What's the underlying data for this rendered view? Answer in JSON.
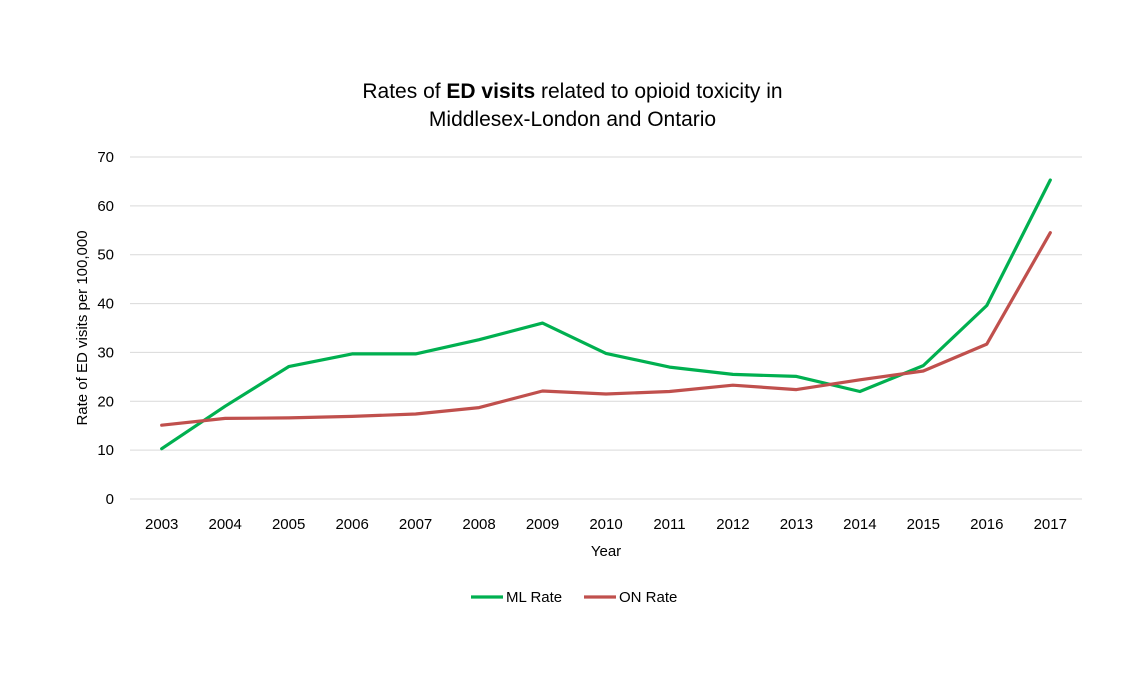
{
  "chart_data": {
    "type": "line",
    "title_part1": "Rates of ",
    "title_bold": "ED visits",
    "title_part2": " related to opioid toxicity in",
    "title_line2": "Middlesex-London and Ontario",
    "xlabel": "Year",
    "ylabel": "Rate of ED visits per 100,000",
    "ylim": [
      0,
      70
    ],
    "yticks": [
      0,
      10,
      20,
      30,
      40,
      50,
      60,
      70
    ],
    "grid": true,
    "legend_position": "bottom",
    "categories": [
      "2003",
      "2004",
      "2005",
      "2006",
      "2007",
      "2008",
      "2009",
      "2010",
      "2011",
      "2012",
      "2013",
      "2014",
      "2015",
      "2016",
      "2017"
    ],
    "series": [
      {
        "name": "ML Rate",
        "color": "#00B050",
        "values": [
          10.3,
          19.0,
          27.1,
          29.7,
          29.7,
          32.6,
          36.0,
          29.8,
          27.0,
          25.5,
          25.1,
          22.0,
          27.3,
          39.6,
          65.3
        ]
      },
      {
        "name": "ON Rate",
        "color": "#C0504D",
        "values": [
          15.1,
          16.5,
          16.6,
          16.9,
          17.4,
          18.7,
          22.1,
          21.5,
          22.0,
          23.3,
          22.4,
          24.4,
          26.2,
          31.7,
          54.5
        ]
      }
    ]
  }
}
